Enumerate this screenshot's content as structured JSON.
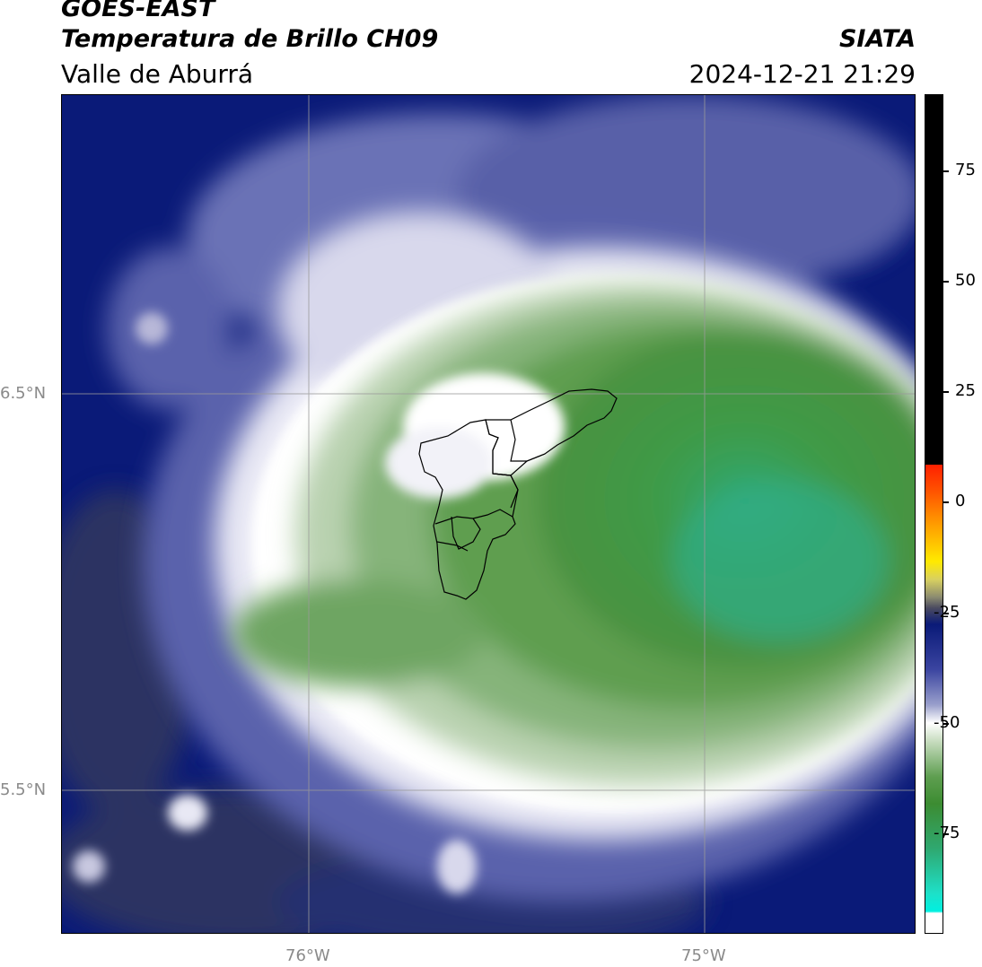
{
  "header": {
    "satellite": "GOES-EAST",
    "product": "Temperatura de Brillo CH09",
    "region": "Valle de Aburrá",
    "agency": "SIATA",
    "datetime": "2024-12-21 21:29"
  },
  "map": {
    "lat_labels": [
      "6.5°N",
      "5.5°N"
    ],
    "lon_labels": [
      "76°W",
      "75°W"
    ],
    "outline": "Valle de Aburrá municipalities"
  },
  "colorbar": {
    "ticks": [
      "75",
      "50",
      "25",
      "0",
      "-25",
      "-50",
      "-75"
    ],
    "colors": {
      "cold_fill": "#e0ffff",
      "cyan": "#1ee0c8",
      "green": "#3c8c32",
      "white": "#ffffff",
      "blue": "#0a1a78",
      "yellow": "#ffea00",
      "orange": "#ff8c00",
      "red": "#ff2000",
      "black": "#000000"
    }
  }
}
